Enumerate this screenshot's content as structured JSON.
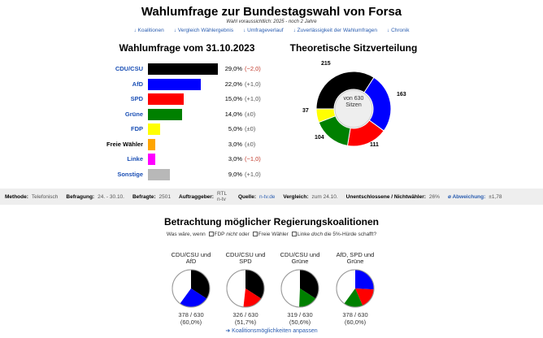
{
  "page": {
    "title": "Wahlumfrage zur Bundestagswahl von Forsa",
    "subtitle": "Wahl voraussichtlich: 2025 - noch 2 Jahre",
    "nav": [
      "↓ Koalitionen",
      "↓ Vergleich Wählergebnis",
      "↓ Umfrageverlauf",
      "↓ Zuverlässigkeit der Wahlumfragen",
      "↓ Chronik"
    ]
  },
  "poll": {
    "title": "Wahlumfrage vom 31.10.2023",
    "parties": [
      {
        "name": "CDU/CSU",
        "value": 29.0,
        "pct": "29,0%",
        "change": "(−2,0)",
        "trend": "neg",
        "color": "#000000"
      },
      {
        "name": "AfD",
        "value": 22.0,
        "pct": "22,0%",
        "change": "(+1,0)",
        "trend": "pos",
        "color": "#0000ff"
      },
      {
        "name": "SPD",
        "value": 15.0,
        "pct": "15,0%",
        "change": "(+1,0)",
        "trend": "pos",
        "color": "#ff0000"
      },
      {
        "name": "Grüne",
        "value": 14.0,
        "pct": "14,0%",
        "change": "(±0)",
        "trend": "zero",
        "color": "#008000"
      },
      {
        "name": "FDP",
        "value": 5.0,
        "pct": "5,0%",
        "change": "(±0)",
        "trend": "zero",
        "color": "#ffff00"
      },
      {
        "name": "Freie Wähler",
        "value": 3.0,
        "pct": "3,0%",
        "change": "(±0)",
        "trend": "zero",
        "color": "#ffa500"
      },
      {
        "name": "Linke",
        "value": 3.0,
        "pct": "3,0%",
        "change": "(−1,0)",
        "trend": "neg",
        "color": "#ff00ff"
      },
      {
        "name": "Sonstige",
        "value": 9.0,
        "pct": "9,0%",
        "change": "(+1,0)",
        "trend": "pos",
        "color": "#b8b8b8"
      }
    ]
  },
  "seats": {
    "title": "Theoretische Sitzverteilung",
    "total_label": "von 630",
    "unit_label": "Sitzen",
    "parties": [
      {
        "name": "CDU/CSU",
        "seats": 215,
        "label": "215",
        "color": "#000000"
      },
      {
        "name": "AfD",
        "seats": 163,
        "label": "163",
        "color": "#0000ff"
      },
      {
        "name": "SPD",
        "seats": 111,
        "label": "111",
        "color": "#ff0000"
      },
      {
        "name": "Grüne",
        "seats": 104,
        "label": "104",
        "color": "#008000"
      },
      {
        "name": "FDP",
        "seats": 37,
        "label": "37",
        "color": "#ffff00"
      }
    ]
  },
  "method": {
    "items": [
      {
        "key": "Methode:",
        "value": "Telefonisch"
      },
      {
        "key": "Befragung:",
        "value": "24. - 30.10."
      },
      {
        "key": "Befragte:",
        "value": "2501"
      },
      {
        "key": "Auftraggeber:",
        "value": "RTL n-tv"
      },
      {
        "key": "Quelle:",
        "value": "n-tv.de",
        "link": true
      },
      {
        "key": "Vergleich:",
        "value": "zum 24.10."
      },
      {
        "key": "Unentschlossene / Nichtwähler:",
        "value": "26%"
      },
      {
        "key": "ø Abweichung:",
        "value": "±1,78",
        "keylink": true
      }
    ]
  },
  "coalitions": {
    "title": "Betrachtung möglicher Regierungskoalitionen",
    "question_prefix": "Was wäre, wenn",
    "q_fdp": "FDP",
    "q_nicht": "nicht",
    "q_oder": "oder",
    "q_fw": "Freie Wähler",
    "q_linke": "Linke",
    "q_doch": "doch",
    "q_suffix": "die 5%-Hürde schafft?",
    "items": [
      {
        "name": "CDU/CSU und AfD",
        "seats_text": "378 / 630",
        "pct_text": "(60,0%)",
        "parts": [
          {
            "seats": 215,
            "color": "#000000"
          },
          {
            "seats": 163,
            "color": "#0000ff"
          }
        ]
      },
      {
        "name": "CDU/CSU und SPD",
        "seats_text": "326 / 630",
        "pct_text": "(51,7%)",
        "parts": [
          {
            "seats": 215,
            "color": "#000000"
          },
          {
            "seats": 111,
            "color": "#ff0000"
          }
        ]
      },
      {
        "name": "CDU/CSU und Grüne",
        "seats_text": "319 / 630",
        "pct_text": "(50,6%)",
        "parts": [
          {
            "seats": 215,
            "color": "#000000"
          },
          {
            "seats": 104,
            "color": "#008000"
          }
        ]
      },
      {
        "name": "AfD, SPD und Grüne",
        "seats_text": "378 / 630",
        "pct_text": "(60,0%)",
        "parts": [
          {
            "seats": 163,
            "color": "#0000ff"
          },
          {
            "seats": 111,
            "color": "#ff0000"
          },
          {
            "seats": 104,
            "color": "#008000"
          }
        ]
      }
    ],
    "total_seats": 630,
    "adjust_link": "➜ Koalitionsmöglichkeiten anpassen"
  }
}
